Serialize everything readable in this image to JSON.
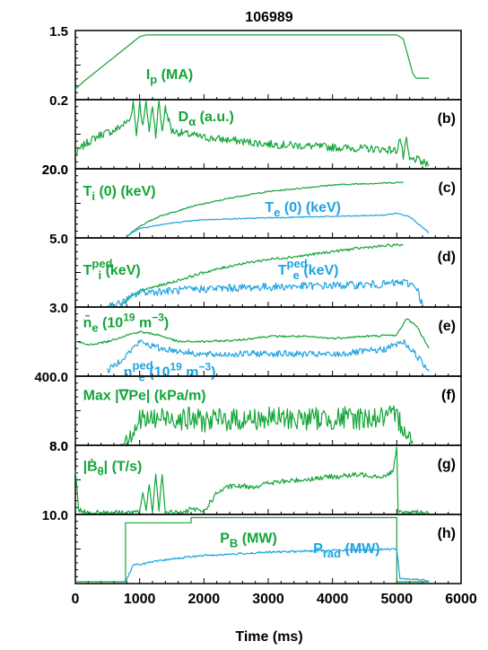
{
  "chart_data": {
    "type": "line",
    "title": "106989",
    "xlabel": "Time (ms)",
    "xlim": [
      0,
      6000
    ],
    "xticks": [
      "0",
      "1000",
      "2000",
      "3000",
      "4000",
      "5000",
      "6000"
    ],
    "colors": {
      "green": "#13a538",
      "cyan": "#1ea3e0",
      "axis": "#000000"
    },
    "panels": [
      {
        "id": "a",
        "tag": "",
        "ytop_label": "1.5",
        "ybottom_label": "0.2",
        "ylim": [
          0,
          1.5
        ],
        "annotations": [
          {
            "main": "I",
            "sub": "p",
            "rest": " (MA)",
            "color": "green",
            "x": 1100,
            "y": 0.55
          }
        ],
        "series": [
          {
            "color": "green",
            "noise": 0,
            "points": [
              [
                0,
                0.2
              ],
              [
                150,
                0.4
              ],
              [
                1000,
                1.4
              ],
              [
                1100,
                1.44
              ],
              [
                5000,
                1.44
              ],
              [
                5100,
                1.35
              ],
              [
                5250,
                0.55
              ],
              [
                5300,
                0.45
              ],
              [
                5500,
                0.45
              ]
            ]
          }
        ]
      },
      {
        "id": "b",
        "tag": "(b)",
        "ytop_label": "",
        "ybottom_label": "20.0",
        "ylim": [
          0,
          1
        ],
        "annotations": [
          {
            "main": "D",
            "greek": "α",
            "rest": " (a.u.)",
            "color": "green",
            "x": 1600,
            "y": 0.78
          }
        ],
        "series": [
          {
            "color": "green",
            "noise": 0.06,
            "points": [
              [
                0,
                0.2
              ],
              [
                150,
                0.35
              ],
              [
                400,
                0.5
              ],
              [
                600,
                0.55
              ],
              [
                850,
                0.72
              ],
              [
                900,
                1.0
              ],
              [
                950,
                0.5
              ],
              [
                1000,
                1.0
              ],
              [
                1050,
                0.6
              ],
              [
                1100,
                1.0
              ],
              [
                1150,
                0.55
              ],
              [
                1200,
                0.95
              ],
              [
                1250,
                0.5
              ],
              [
                1300,
                1.0
              ],
              [
                1350,
                0.55
              ],
              [
                1400,
                0.9
              ],
              [
                1500,
                0.55
              ],
              [
                2000,
                0.45
              ],
              [
                3000,
                0.35
              ],
              [
                4000,
                0.3
              ],
              [
                4800,
                0.27
              ],
              [
                5000,
                0.25
              ],
              [
                5050,
                0.45
              ],
              [
                5100,
                0.15
              ],
              [
                5150,
                0.4
              ],
              [
                5200,
                0.1
              ],
              [
                5300,
                0.12
              ],
              [
                5500,
                0.02
              ]
            ]
          }
        ]
      },
      {
        "id": "c",
        "tag": "(c)",
        "ytop_label": "20.0",
        "ybottom_label": "5.0",
        "ylim": [
          0,
          1
        ],
        "annotations": [
          {
            "main": "T",
            "sub": "i",
            "rest": " (0) (keV)",
            "color": "green",
            "x": 120,
            "y": 0.7
          },
          {
            "main": "T",
            "sub": "e",
            "rest": " (0) (keV)",
            "color": "cyan",
            "x": 2950,
            "y": 0.45
          }
        ],
        "series": [
          {
            "color": "green",
            "noise": 0.01,
            "points": [
              [
                800,
                0.0
              ],
              [
                1000,
                0.15
              ],
              [
                1300,
                0.3
              ],
              [
                1800,
                0.45
              ],
              [
                2500,
                0.6
              ],
              [
                3000,
                0.68
              ],
              [
                3500,
                0.73
              ],
              [
                4000,
                0.78
              ],
              [
                4500,
                0.8
              ],
              [
                5100,
                0.82
              ]
            ]
          },
          {
            "color": "cyan",
            "noise": 0.008,
            "points": [
              [
                800,
                0.0
              ],
              [
                1000,
                0.12
              ],
              [
                1500,
                0.2
              ],
              [
                2000,
                0.25
              ],
              [
                3000,
                0.28
              ],
              [
                4000,
                0.3
              ],
              [
                4800,
                0.32
              ],
              [
                5000,
                0.35
              ],
              [
                5200,
                0.3
              ],
              [
                5500,
                0.05
              ]
            ]
          }
        ]
      },
      {
        "id": "d",
        "tag": "(d)",
        "ytop_label": "",
        "ybottom_label": "3.0",
        "ylim": [
          0,
          1
        ],
        "annotations": [
          {
            "main": "T",
            "sup": "ped",
            "sub": "i",
            "rest": " (keV)",
            "color": "green",
            "x": 120,
            "y": 0.55
          },
          {
            "main": "T",
            "sup": "ped",
            "sub": "e",
            "rest": " (keV)",
            "color": "cyan",
            "x": 3150,
            "y": 0.55
          }
        ],
        "series": [
          {
            "color": "green",
            "noise": 0.02,
            "points": [
              [
                700,
                0.0
              ],
              [
                1000,
                0.22
              ],
              [
                1500,
                0.35
              ],
              [
                2000,
                0.5
              ],
              [
                2500,
                0.62
              ],
              [
                3000,
                0.7
              ],
              [
                3500,
                0.75
              ],
              [
                4000,
                0.82
              ],
              [
                4500,
                0.88
              ],
              [
                5000,
                0.92
              ],
              [
                5100,
                0.92
              ]
            ]
          },
          {
            "color": "cyan",
            "noise": 0.06,
            "points": [
              [
                500,
                0.0
              ],
              [
                700,
                0.02
              ],
              [
                1000,
                0.2
              ],
              [
                1500,
                0.22
              ],
              [
                2000,
                0.25
              ],
              [
                3000,
                0.28
              ],
              [
                4000,
                0.3
              ],
              [
                4800,
                0.32
              ],
              [
                5100,
                0.35
              ],
              [
                5300,
                0.3
              ],
              [
                5400,
                0.0
              ]
            ]
          }
        ]
      },
      {
        "id": "e",
        "tag": "(e)",
        "ytop_label": "",
        "ybottom_label": "400.0",
        "ylim": [
          0,
          1
        ],
        "annotations": [
          {
            "main": "n̄",
            "sub": "e",
            "rest": " (10",
            "sup2": "19",
            "rest2": " m",
            "sup3": "−3",
            "rest3": ")",
            "color": "green",
            "x": 120,
            "y": 0.8
          },
          {
            "main": "n",
            "sup": "ped",
            "sub": "e",
            "rest": " (10",
            "sup2": "19",
            "rest2": " m",
            "sup3": "−3",
            "rest3": ")",
            "color": "cyan",
            "x": 750,
            "y": 0.05
          }
        ],
        "series": [
          {
            "color": "green",
            "noise": 0.015,
            "points": [
              [
                0,
                0.5
              ],
              [
                200,
                0.45
              ],
              [
                500,
                0.5
              ],
              [
                800,
                0.6
              ],
              [
                1000,
                0.65
              ],
              [
                1300,
                0.6
              ],
              [
                1600,
                0.5
              ],
              [
                2000,
                0.5
              ],
              [
                2500,
                0.52
              ],
              [
                3000,
                0.58
              ],
              [
                3500,
                0.58
              ],
              [
                4000,
                0.55
              ],
              [
                4500,
                0.58
              ],
              [
                5000,
                0.6
              ],
              [
                5150,
                0.85
              ],
              [
                5300,
                0.75
              ],
              [
                5500,
                0.4
              ]
            ]
          },
          {
            "color": "cyan",
            "noise": 0.05,
            "points": [
              [
                500,
                0.05
              ],
              [
                800,
                0.3
              ],
              [
                1000,
                0.5
              ],
              [
                1300,
                0.4
              ],
              [
                2000,
                0.3
              ],
              [
                3000,
                0.32
              ],
              [
                4000,
                0.3
              ],
              [
                4800,
                0.38
              ],
              [
                5100,
                0.5
              ],
              [
                5300,
                0.3
              ],
              [
                5500,
                0.05
              ]
            ]
          }
        ]
      },
      {
        "id": "f",
        "tag": "(f)",
        "ytop_label": "",
        "ybottom_label": "8.0",
        "ylim": [
          0,
          1
        ],
        "annotations": [
          {
            "main": "Max |∇Pe| (kPa/m)",
            "color": "green",
            "x": 120,
            "y": 0.75
          }
        ],
        "series": [
          {
            "color": "green",
            "noise": 0.18,
            "points": [
              [
                700,
                0.0
              ],
              [
                900,
                0.2
              ],
              [
                1000,
                0.35
              ],
              [
                1500,
                0.4
              ],
              [
                2000,
                0.35
              ],
              [
                3000,
                0.38
              ],
              [
                4000,
                0.38
              ],
              [
                5000,
                0.4
              ],
              [
                5150,
                0.2
              ],
              [
                5250,
                0.0
              ]
            ]
          }
        ]
      },
      {
        "id": "g",
        "tag": "(g)",
        "ytop_label": "8.0",
        "ybottom_label": "10.0",
        "ylim": [
          0,
          1
        ],
        "annotations": [
          {
            "main": "|Ḃ",
            "sub": "θ",
            "rest": "| (T/s)",
            "color": "green",
            "x": 120,
            "y": 0.72
          }
        ],
        "series": [
          {
            "color": "green",
            "noise": 0.04,
            "points": [
              [
                0,
                0.65
              ],
              [
                50,
                0.05
              ],
              [
                200,
                0.0
              ],
              [
                1000,
                0.0
              ],
              [
                1050,
                0.3
              ],
              [
                1100,
                0.05
              ],
              [
                1150,
                0.45
              ],
              [
                1200,
                0.0
              ],
              [
                1250,
                0.55
              ],
              [
                1300,
                0.05
              ],
              [
                1350,
                0.6
              ],
              [
                1400,
                0.0
              ],
              [
                1700,
                0.0
              ],
              [
                1800,
                0.05
              ],
              [
                2000,
                0.02
              ],
              [
                2200,
                0.3
              ],
              [
                2400,
                0.4
              ],
              [
                2800,
                0.4
              ],
              [
                3000,
                0.45
              ],
              [
                3500,
                0.5
              ],
              [
                4000,
                0.55
              ],
              [
                4500,
                0.58
              ],
              [
                4800,
                0.55
              ],
              [
                4950,
                0.65
              ],
              [
                5000,
                1.0
              ],
              [
                5020,
                0.0
              ],
              [
                5500,
                0.0
              ]
            ]
          }
        ]
      },
      {
        "id": "h",
        "tag": "(h)",
        "ytop_label": "",
        "ybottom_label": "",
        "ylim": [
          0,
          1
        ],
        "annotations": [
          {
            "main": "P",
            "sub": "B",
            "rest": " (MW)",
            "color": "green",
            "x": 2250,
            "y": 0.68
          },
          {
            "main": "P",
            "sub": "rad",
            "rest": " (MW)",
            "color": "cyan",
            "x": 3700,
            "y": 0.52
          }
        ],
        "series": [
          {
            "color": "green",
            "noise": 0,
            "step": true,
            "points": [
              [
                0,
                0.0
              ],
              [
                780,
                0.0
              ],
              [
                780,
                0.9
              ],
              [
                1800,
                0.9
              ],
              [
                1800,
                0.98
              ],
              [
                5000,
                0.98
              ],
              [
                5000,
                0.0
              ],
              [
                5500,
                0.0
              ]
            ]
          },
          {
            "color": "cyan",
            "noise": 0.015,
            "points": [
              [
                780,
                0.0
              ],
              [
                900,
                0.25
              ],
              [
                1500,
                0.35
              ],
              [
                2000,
                0.4
              ],
              [
                3000,
                0.45
              ],
              [
                4000,
                0.48
              ],
              [
                5000,
                0.5
              ],
              [
                5050,
                0.05
              ],
              [
                5500,
                0.02
              ]
            ]
          }
        ]
      }
    ]
  }
}
